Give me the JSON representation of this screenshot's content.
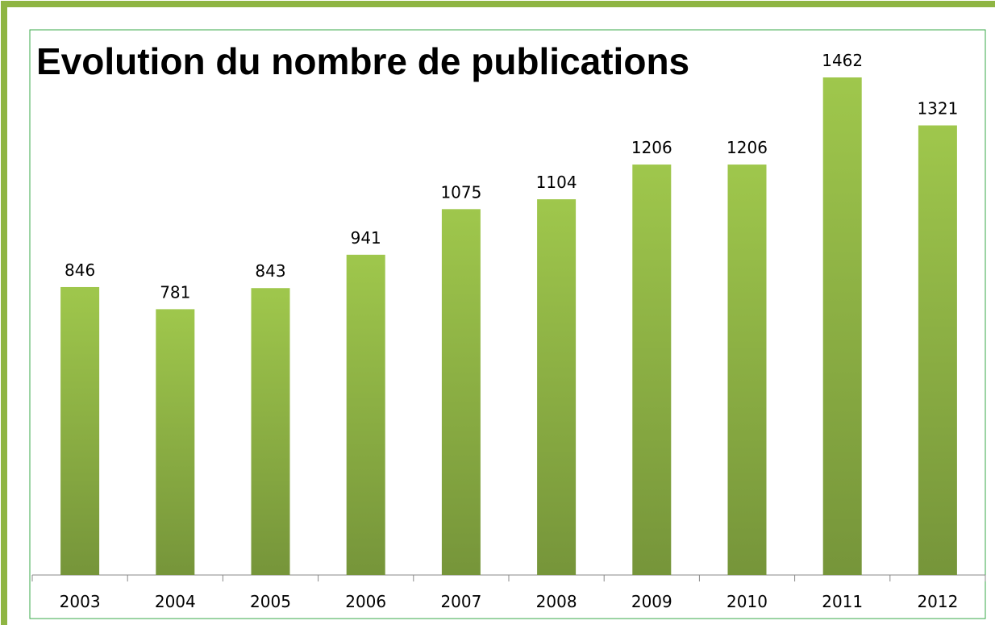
{
  "chart_data": {
    "type": "bar",
    "title": "Evolution du nombre de publications",
    "categories": [
      "2003",
      "2004",
      "2005",
      "2006",
      "2007",
      "2008",
      "2009",
      "2010",
      "2011",
      "2012"
    ],
    "values": [
      846,
      781,
      843,
      941,
      1075,
      1104,
      1206,
      1206,
      1462,
      1321
    ],
    "color": "#8fb543"
  }
}
